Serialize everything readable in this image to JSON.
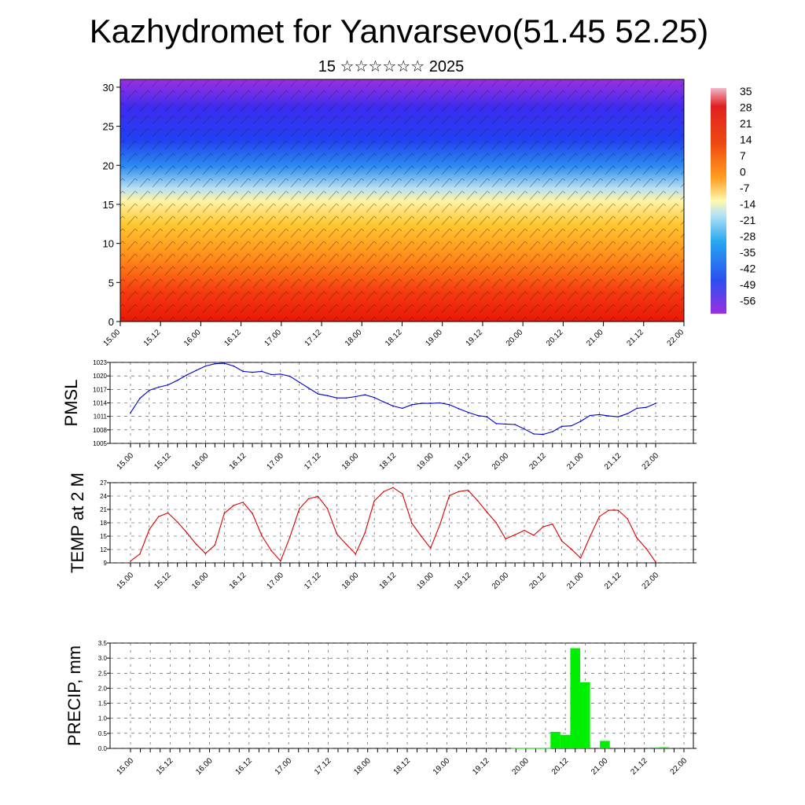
{
  "title": "Kazhydromet for Yanvarsevo(51.45 52.25)",
  "subtitle": "15 ☆☆☆☆☆☆ 2025",
  "time_labels": [
    "15.00",
    "15.12",
    "16.00",
    "16.12",
    "17.00",
    "17.12",
    "18.00",
    "18.12",
    "19.00",
    "19.12",
    "20.00",
    "20.12",
    "21.00",
    "21.12",
    "22.00"
  ],
  "colors": {
    "pmsl": "#0000cc",
    "temp": "#dd0000",
    "precip": "#00ee00"
  },
  "chart_data": [
    {
      "type": "heatmap",
      "title": "",
      "ylabel": "",
      "y_ticks": [
        "0",
        "5",
        "10",
        "15",
        "20",
        "25",
        "30"
      ],
      "ylim": [
        0,
        31
      ],
      "colorbar_labels": [
        "35",
        "28",
        "21",
        "14",
        "7",
        "0",
        "-7",
        "-14",
        "-21",
        "-28",
        "-35",
        "-42",
        "-49",
        "-56"
      ],
      "note_overlay": "wind barbs"
    },
    {
      "type": "line",
      "ylabel": "PMSL",
      "ylim": [
        1005,
        1023
      ],
      "y_ticks": [
        "1023",
        "1020",
        "1017",
        "1014",
        "1011",
        "1008",
        "1005"
      ],
      "x": [
        0,
        1,
        2,
        3,
        4,
        5,
        6,
        7,
        8,
        9,
        10,
        11,
        12,
        13,
        14,
        15,
        16,
        17,
        18,
        19,
        20,
        21,
        22,
        23,
        24,
        25,
        26,
        27,
        28,
        29,
        30,
        31,
        32,
        33,
        34,
        35,
        36,
        37,
        38,
        39,
        40,
        41,
        42,
        43,
        44,
        45,
        46,
        47,
        48,
        49,
        50,
        51,
        52,
        53,
        54,
        55,
        56
      ],
      "values": [
        1011.8,
        1015,
        1016.8,
        1017.5,
        1018,
        1019,
        1020.2,
        1021.2,
        1022.2,
        1022.7,
        1022.8,
        1022.2,
        1021,
        1020.8,
        1021,
        1020.3,
        1020.4,
        1019.9,
        1018.6,
        1017.3,
        1016,
        1015.6,
        1015.1,
        1015.1,
        1015.4,
        1015.8,
        1015.2,
        1014.2,
        1013.3,
        1012.8,
        1013.6,
        1013.9,
        1013.9,
        1014,
        1013.6,
        1012.7,
        1011.9,
        1011.2,
        1010.9,
        1009.4,
        1009.3,
        1009.2,
        1008.2,
        1007.1,
        1007,
        1007.6,
        1008.8,
        1008.9,
        1009.9,
        1011.2,
        1011.4,
        1011.1,
        1010.9,
        1011.6,
        1012.8,
        1013,
        1013.9
      ]
    },
    {
      "type": "line",
      "ylabel": "TEMP at 2 M",
      "ylim": [
        9,
        27
      ],
      "y_ticks": [
        "27",
        "24",
        "21",
        "18",
        "15",
        "12",
        "9"
      ],
      "x": [
        0,
        1,
        2,
        3,
        4,
        5,
        6,
        7,
        8,
        9,
        10,
        11,
        12,
        13,
        14,
        15,
        16,
        17,
        18,
        19,
        20,
        21,
        22,
        23,
        24,
        25,
        26,
        27,
        28,
        29,
        30,
        31,
        32,
        33,
        34,
        35,
        36,
        37,
        38,
        39,
        40,
        41,
        42,
        43,
        44,
        45,
        46,
        47,
        48,
        49,
        50,
        51,
        52,
        53,
        54,
        55,
        56
      ],
      "values": [
        9.4,
        11,
        16.5,
        19.4,
        20.2,
        18.2,
        15.8,
        13.2,
        11.1,
        13,
        20.1,
        21.9,
        22.6,
        20.1,
        15.1,
        11.8,
        9.4,
        14.8,
        21.1,
        23.4,
        23.9,
        21.2,
        15.5,
        13.2,
        11,
        15.7,
        22.9,
        25,
        25.9,
        24.5,
        17.9,
        15,
        12.3,
        17.6,
        24.1,
        25,
        25.3,
        23,
        20.4,
        18,
        14.4,
        15.3,
        16.3,
        15.2,
        17.1,
        17.7,
        13.9,
        12.1,
        10.1,
        14.9,
        19.4,
        20.8,
        20.8,
        18.9,
        14.6,
        12.2,
        9.2
      ]
    },
    {
      "type": "bar",
      "ylabel": "PRECIP, mm",
      "ylim": [
        0,
        3.5
      ],
      "y_ticks": [
        "3.5",
        "3.0",
        "2.5",
        "2.0",
        "1.5",
        "1.0",
        "0.5",
        "0.0"
      ],
      "x": [
        0,
        1,
        2,
        3,
        4,
        5,
        6,
        7,
        8,
        9,
        10,
        11,
        12,
        13,
        14,
        15,
        16,
        17,
        18,
        19,
        20,
        21,
        22,
        23,
        24,
        25,
        26,
        27,
        28,
        29,
        30,
        31,
        32,
        33,
        34,
        35,
        36,
        37,
        38,
        39,
        40,
        41,
        42,
        43,
        44,
        45,
        46,
        47,
        48,
        49,
        50,
        51,
        52,
        53,
        54,
        55,
        56
      ],
      "values": [
        0,
        0,
        0,
        0,
        0,
        0,
        0,
        0,
        0,
        0,
        0,
        0,
        0,
        0,
        0,
        0,
        0,
        0,
        0,
        0,
        0,
        0,
        0,
        0,
        0,
        0,
        0,
        0,
        0,
        0,
        0,
        0,
        0,
        0,
        0,
        0,
        0,
        0,
        0,
        0.01,
        0.01,
        0.01,
        0.01,
        0.55,
        0.45,
        3.33,
        2.2,
        0,
        0.25,
        0,
        0,
        0,
        0,
        0.03,
        0.04,
        0,
        0
      ]
    }
  ]
}
